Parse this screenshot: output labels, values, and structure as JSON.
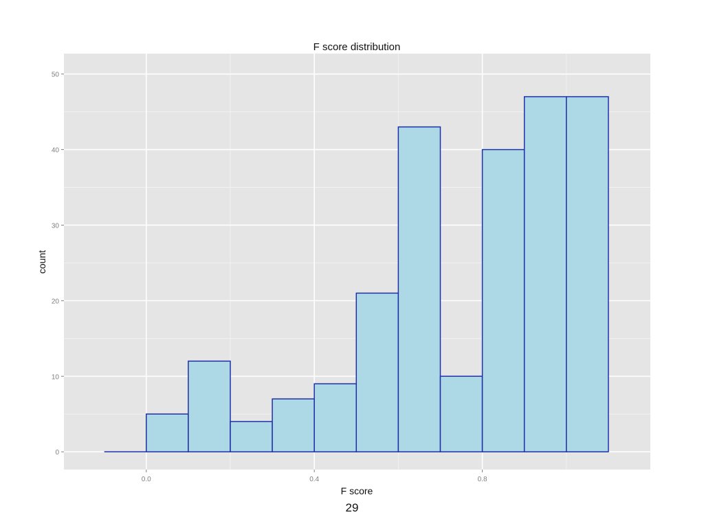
{
  "chart_data": {
    "type": "bar",
    "title": "F score distribution",
    "xlabel": "F score",
    "ylabel": "count",
    "bin_width": 0.1,
    "bins": [
      {
        "x0": -0.1,
        "x1": 0.0,
        "count": 0
      },
      {
        "x0": 0.0,
        "x1": 0.1,
        "count": 5
      },
      {
        "x0": 0.1,
        "x1": 0.2,
        "count": 12
      },
      {
        "x0": 0.2,
        "x1": 0.3,
        "count": 4
      },
      {
        "x0": 0.3,
        "x1": 0.4,
        "count": 7
      },
      {
        "x0": 0.4,
        "x1": 0.5,
        "count": 9
      },
      {
        "x0": 0.5,
        "x1": 0.6,
        "count": 21
      },
      {
        "x0": 0.6,
        "x1": 0.7,
        "count": 43
      },
      {
        "x0": 0.7,
        "x1": 0.8,
        "count": 10
      },
      {
        "x0": 0.8,
        "x1": 0.9,
        "count": 40
      },
      {
        "x0": 0.9,
        "x1": 1.0,
        "count": 47
      },
      {
        "x0": 1.0,
        "x1": 1.1,
        "count": 47
      }
    ],
    "xlim": [
      -0.196,
      1.2
    ],
    "ylim": [
      -2.35,
      52.7
    ],
    "x_ticks": [
      0.0,
      0.4,
      0.8
    ],
    "x_tick_labels": [
      "0.0",
      "0.4",
      "0.8"
    ],
    "y_ticks": [
      0,
      10,
      20,
      30,
      40,
      50
    ],
    "y_tick_labels": [
      "0",
      "10",
      "20",
      "30",
      "40",
      "50"
    ],
    "grid": true,
    "legend": "none",
    "colors": {
      "panel_background": "#e5e5e5",
      "grid_major": "#ffffff",
      "grid_minor": "#f2f2f2",
      "bar_fill": "#add8e6",
      "bar_outline": "#1f2fa8",
      "tick_text": "#7f7f7f"
    }
  },
  "slide": {
    "page_number": "29"
  }
}
